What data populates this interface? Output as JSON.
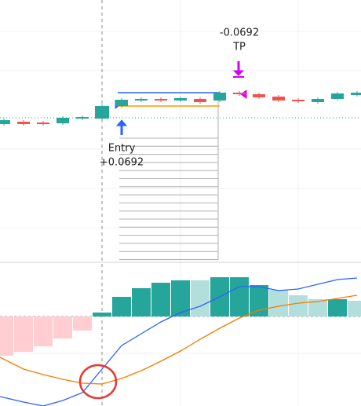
{
  "chart_data": {
    "type": "candlestick",
    "candles": {
      "open": [
        0.177,
        0.18,
        0.179,
        0.178,
        0.184,
        0.184,
        0.2,
        0.207,
        0.209,
        0.207,
        0.209,
        0.207,
        0.217,
        0.215,
        0.212,
        0.208,
        0.205,
        0.209,
        0.214
      ],
      "close": [
        0.182,
        0.177,
        0.177,
        0.185,
        0.186,
        0.2,
        0.208,
        0.209,
        0.207,
        0.21,
        0.205,
        0.217,
        0.215,
        0.211,
        0.207,
        0.206,
        0.209,
        0.216,
        0.217
      ],
      "up_color": "#26a69a",
      "down_color": "#ef5350"
    },
    "ylim": [
      0,
      0.335
    ],
    "entry_index": 5,
    "levels": {
      "tp": 0.217,
      "entry": 0.2,
      "last": 0.185,
      "tp_color": "#2962ff",
      "entry_color": "#ff9800",
      "last_color": "#26a69a"
    },
    "annotations": {
      "tp_value": "-0.0692",
      "tp_label": "TP",
      "entry_label": "Entry",
      "entry_value": "+0.0692"
    },
    "macd": {
      "ylim": [
        -0.114,
        0.068
      ],
      "histogram": {
        "values": [
          -0.05,
          -0.045,
          -0.038,
          -0.028,
          -0.018,
          0.005,
          0.025,
          0.036,
          0.043,
          0.046,
          0.046,
          0.05,
          0.05,
          0.04,
          0.034,
          0.027,
          0.022,
          0.022,
          0.02
        ],
        "colors": [
          "#ffcdd2",
          "#ffcdd2",
          "#ffcdd2",
          "#ffcdd2",
          "#ffcdd2",
          "#26a69a",
          "#26a69a",
          "#26a69a",
          "#26a69a",
          "#26a69a",
          "#b2dfdb",
          "#26a69a",
          "#26a69a",
          "#26a69a",
          "#b2dfdb",
          "#b2dfdb",
          "#b2dfdb",
          "#26a69a",
          "#b2dfdb"
        ]
      },
      "series": [
        {
          "color": "#2962ff",
          "values": [
            -0.102,
            -0.109,
            -0.114,
            -0.107,
            -0.097,
            -0.067,
            -0.037,
            -0.022,
            -0.007,
            0.005,
            0.013,
            0.025,
            0.038,
            0.038,
            0.033,
            0.035,
            0.041,
            0.047,
            0.049
          ]
        },
        {
          "color": "#f57c00",
          "values": [
            -0.052,
            -0.067,
            -0.074,
            -0.08,
            -0.085,
            -0.086,
            -0.079,
            -0.069,
            -0.057,
            -0.044,
            -0.029,
            -0.015,
            -0.002,
            0.008,
            0.013,
            0.017,
            0.019,
            0.023,
            0.027
          ]
        }
      ]
    }
  }
}
